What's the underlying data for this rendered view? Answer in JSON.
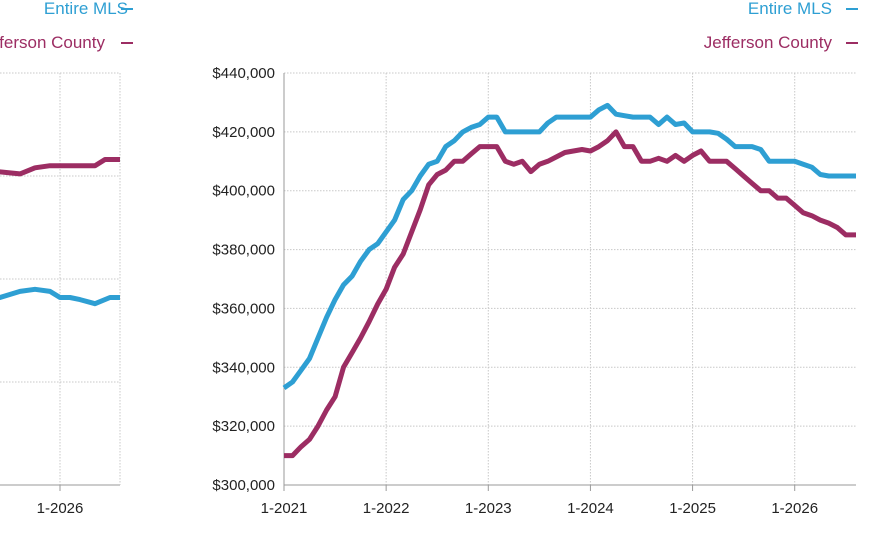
{
  "colors": {
    "mls": "#2e9fd3",
    "county": "#9c2d63",
    "grid": "#c8c8c8",
    "axis": "#9a9a9a"
  },
  "chart_data": [
    {
      "type": "line",
      "title": "",
      "legend": {
        "placement": "top-right"
      },
      "x_tick_labels": [
        "1-2026"
      ],
      "series": [
        {
          "name": "Entire MLS",
          "color": "#2e9fd3",
          "x": [
            2025.0,
            2025.2,
            2025.4,
            2025.6,
            2025.75,
            2025.9,
            2026.0,
            2026.1,
            2026.2,
            2026.35,
            2026.5,
            2026.6
          ],
          "y": [
            0.45,
            0.46,
            0.455,
            0.47,
            0.475,
            0.47,
            0.455,
            0.455,
            0.45,
            0.44,
            0.455,
            0.455
          ]
        },
        {
          "name": "Jefferson County",
          "color": "#9c2d63",
          "x": [
            2025.0,
            2025.2,
            2025.4,
            2025.6,
            2025.75,
            2025.9,
            2026.0,
            2026.1,
            2026.2,
            2026.35,
            2026.45,
            2026.6
          ],
          "y": [
            0.78,
            0.775,
            0.76,
            0.755,
            0.77,
            0.775,
            0.775,
            0.775,
            0.775,
            0.775,
            0.79,
            0.79
          ]
        }
      ]
    },
    {
      "type": "line",
      "title": "",
      "xlim": [
        2021.0,
        2026.6
      ],
      "ylim": [
        300000,
        440000
      ],
      "grid": true,
      "legend": {
        "placement": "top-right"
      },
      "y_ticks": [
        300000,
        320000,
        340000,
        360000,
        380000,
        400000,
        420000,
        440000
      ],
      "y_tick_labels": [
        "$300,000",
        "$320,000",
        "$340,000",
        "$360,000",
        "$380,000",
        "$400,000",
        "$420,000",
        "$440,000"
      ],
      "x_ticks": [
        2021,
        2022,
        2023,
        2024,
        2025,
        2026
      ],
      "x_tick_labels": [
        "1-2021",
        "1-2022",
        "1-2023",
        "1-2024",
        "1-2025",
        "1-2026"
      ],
      "series": [
        {
          "name": "Entire MLS",
          "color": "#2e9fd3",
          "x": [
            2021.0,
            2021.083,
            2021.167,
            2021.25,
            2021.333,
            2021.417,
            2021.5,
            2021.583,
            2021.667,
            2021.75,
            2021.833,
            2021.917,
            2022.0,
            2022.083,
            2022.167,
            2022.25,
            2022.333,
            2022.417,
            2022.5,
            2022.583,
            2022.667,
            2022.75,
            2022.833,
            2022.917,
            2023.0,
            2023.083,
            2023.167,
            2023.25,
            2023.333,
            2023.417,
            2023.5,
            2023.583,
            2023.667,
            2023.75,
            2023.833,
            2023.917,
            2024.0,
            2024.083,
            2024.167,
            2024.25,
            2024.333,
            2024.417,
            2024.5,
            2024.583,
            2024.667,
            2024.75,
            2024.833,
            2024.917,
            2025.0,
            2025.083,
            2025.167,
            2025.25,
            2025.333,
            2025.417,
            2025.5,
            2025.583,
            2025.667,
            2025.75,
            2025.833,
            2025.917,
            2026.0,
            2026.083,
            2026.167,
            2026.25,
            2026.333,
            2026.417,
            2026.5,
            2026.6
          ],
          "y": [
            333000,
            335000,
            339000,
            343000,
            350000,
            357000,
            363000,
            368000,
            371000,
            376000,
            380000,
            382000,
            386000,
            390000,
            397000,
            400000,
            405000,
            409000,
            410000,
            415000,
            417000,
            420000,
            421500,
            422500,
            425000,
            425000,
            420000,
            420000,
            420000,
            420000,
            420000,
            423000,
            425000,
            425000,
            425000,
            425000,
            425000,
            427500,
            429000,
            426000,
            425500,
            425000,
            425000,
            425000,
            422500,
            425000,
            422500,
            423000,
            420000,
            420000,
            420000,
            419500,
            417500,
            415000,
            415000,
            415000,
            414000,
            410000,
            410000,
            410000,
            410000,
            409000,
            408000,
            405500,
            405000,
            405000,
            405000,
            405000
          ]
        },
        {
          "name": "Jefferson County",
          "color": "#9c2d63",
          "x": [
            2021.0,
            2021.083,
            2021.167,
            2021.25,
            2021.333,
            2021.417,
            2021.5,
            2021.583,
            2021.667,
            2021.75,
            2021.833,
            2021.917,
            2022.0,
            2022.083,
            2022.167,
            2022.25,
            2022.333,
            2022.417,
            2022.5,
            2022.583,
            2022.667,
            2022.75,
            2022.833,
            2022.917,
            2023.0,
            2023.083,
            2023.167,
            2023.25,
            2023.333,
            2023.417,
            2023.5,
            2023.583,
            2023.667,
            2023.75,
            2023.833,
            2023.917,
            2024.0,
            2024.083,
            2024.167,
            2024.25,
            2024.333,
            2024.417,
            2024.5,
            2024.583,
            2024.667,
            2024.75,
            2024.833,
            2024.917,
            2025.0,
            2025.083,
            2025.167,
            2025.25,
            2025.333,
            2025.417,
            2025.5,
            2025.583,
            2025.667,
            2025.75,
            2025.833,
            2025.917,
            2026.0,
            2026.083,
            2026.167,
            2026.25,
            2026.333,
            2026.417,
            2026.5,
            2026.6
          ],
          "y": [
            310000,
            310000,
            313000,
            315500,
            320000,
            325500,
            330000,
            340000,
            345000,
            350000,
            355500,
            361500,
            366500,
            374000,
            378500,
            386000,
            393500,
            402000,
            405500,
            407000,
            410000,
            410000,
            412500,
            415000,
            415000,
            415000,
            410000,
            409000,
            410000,
            406500,
            409000,
            410000,
            411500,
            413000,
            413500,
            414000,
            413500,
            415000,
            417000,
            420000,
            415000,
            415000,
            410000,
            410000,
            411000,
            410000,
            412000,
            410000,
            412000,
            413500,
            410000,
            410000,
            410000,
            407500,
            405000,
            402500,
            400000,
            400000,
            397500,
            397500,
            395000,
            392500,
            391500,
            390000,
            389000,
            387500,
            385000,
            385000
          ]
        }
      ]
    }
  ]
}
